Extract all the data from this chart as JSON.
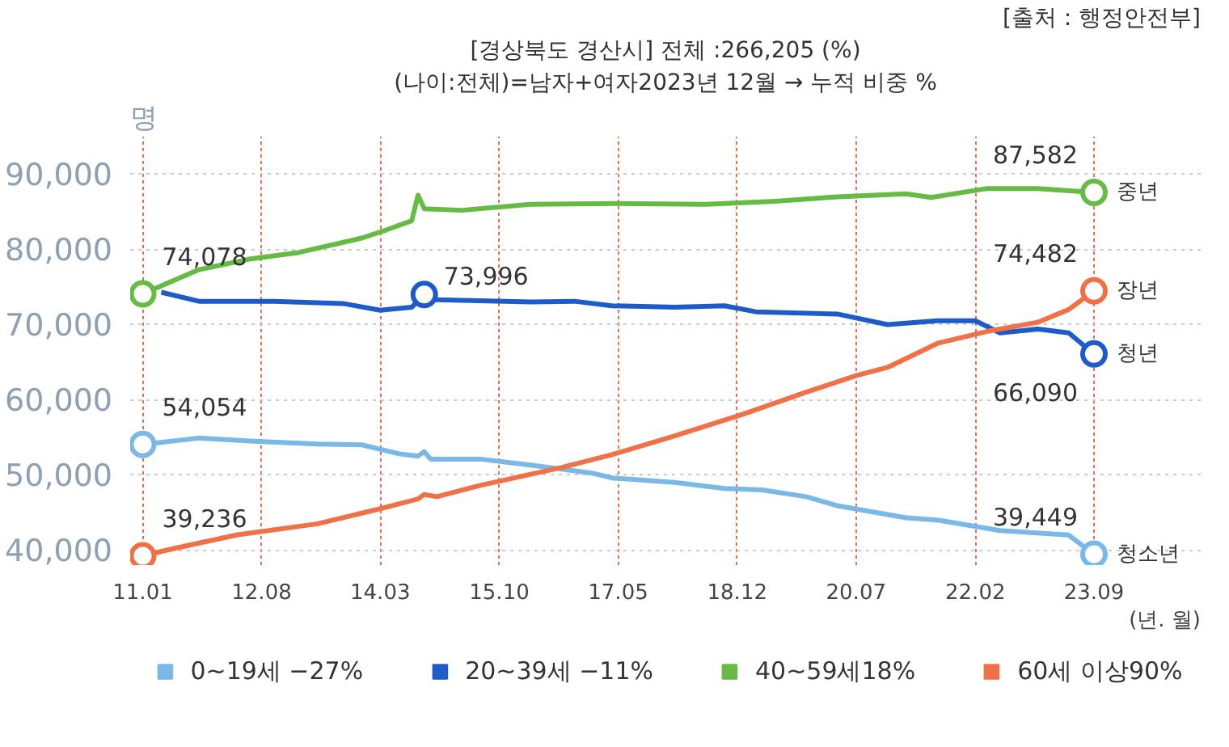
{
  "chart_data": {
    "type": "line",
    "title": "[경상북도 경산시] 전체 :266,205 (%)",
    "subtitle": "(나이:전체)=남자+여자2023년 12월 → 누적 비중 %",
    "ylabel": "명",
    "xlabel": "(년. 월)",
    "annotations": [
      "[출처 : 행정안전부]",
      {
        "text": "청소년",
        "x": "2023-09",
        "y": 39449
      },
      {
        "text": "청년",
        "x": "2023-09",
        "y": 66090
      },
      {
        "text": "중년",
        "x": "2023-09",
        "y": 87582
      },
      {
        "text": "장년",
        "x": "2023-09",
        "y": 74482
      }
    ],
    "xlim": [
      "2010-11",
      "2025-02"
    ],
    "ylim": [
      38000,
      95000
    ],
    "xticks": [
      {
        "value": "2011-01",
        "label": "11.01"
      },
      {
        "value": "2012-08",
        "label": "12.08"
      },
      {
        "value": "2014-03",
        "label": "14.03"
      },
      {
        "value": "2015-10",
        "label": "15.10"
      },
      {
        "value": "2017-05",
        "label": "17.05"
      },
      {
        "value": "2018-12",
        "label": "18.12"
      },
      {
        "value": "2020-07",
        "label": "20.07"
      },
      {
        "value": "2022-02",
        "label": "22.02"
      },
      {
        "value": "2023-09",
        "label": "23.09"
      }
    ],
    "yticks": [
      {
        "value": 40000,
        "label": "40,000"
      },
      {
        "value": 50000,
        "label": "50,000"
      },
      {
        "value": 60000,
        "label": "60,000"
      },
      {
        "value": 70000,
        "label": "70,000"
      },
      {
        "value": 80000,
        "label": "80,000"
      },
      {
        "value": 90000,
        "label": "90,000"
      }
    ],
    "grid": true,
    "legend": "bottom",
    "line_style": "solid",
    "series": [
      {
        "name": "0~19세 −27%",
        "color": "#7ab8e8",
        "x": [
          "2011-01",
          "2011-10",
          "2012-06",
          "2013-05",
          "2013-12",
          "2014-06",
          "2014-09",
          "2014-10",
          "2014-11",
          "2015-07",
          "2016-03",
          "2017-01",
          "2017-04",
          "2018-02",
          "2018-10",
          "2019-04",
          "2019-11",
          "2020-04",
          "2021-03",
          "2021-08",
          "2022-06",
          "2023-05",
          "2023-09"
        ],
        "values": [
          54054,
          54900,
          54500,
          54100,
          54000,
          52800,
          52500,
          53100,
          52100,
          52100,
          51300,
          50200,
          49600,
          49000,
          48200,
          48000,
          47100,
          45900,
          44300,
          44000,
          42600,
          42000,
          39449
        ],
        "value_labels": [
          "54,054",
          null,
          null,
          null,
          null,
          null,
          null,
          null,
          null,
          null,
          null,
          null,
          null,
          null,
          null,
          null,
          null,
          null,
          null,
          null,
          null,
          null,
          "39,449"
        ]
      },
      {
        "name": "20~39세 −11%",
        "color": "#1f5bc8",
        "x": [
          "2011-04",
          "2011-10",
          "2012-10",
          "2013-09",
          "2014-03",
          "2014-08",
          "2014-10",
          "2014-12",
          "2016-03",
          "2016-10",
          "2017-04",
          "2018-02",
          "2018-10",
          "2019-03",
          "2020-04",
          "2020-12",
          "2021-08",
          "2022-02",
          "2022-06",
          "2022-12",
          "2023-05",
          "2023-09"
        ],
        "values": [
          74300,
          73100,
          73100,
          72800,
          71900,
          72300,
          73996,
          73300,
          73000,
          73100,
          72500,
          72300,
          72500,
          71700,
          71400,
          70000,
          70500,
          70500,
          68900,
          69400,
          68900,
          66090
        ],
        "value_labels": [
          null,
          null,
          null,
          null,
          null,
          null,
          "73,996",
          null,
          null,
          null,
          null,
          null,
          null,
          null,
          null,
          null,
          null,
          null,
          null,
          null,
          null,
          "66,090"
        ]
      },
      {
        "name": "40~59세18%",
        "color": "#66bb44",
        "x": [
          "2011-01",
          "2011-10",
          "2012-06",
          "2013-02",
          "2013-12",
          "2014-04",
          "2014-08",
          "2014-09",
          "2014-10",
          "2015-04",
          "2016-03",
          "2017-04",
          "2018-07",
          "2019-06",
          "2020-04",
          "2021-03",
          "2021-07",
          "2022-04",
          "2022-12",
          "2023-09"
        ],
        "values": [
          74078,
          77300,
          78700,
          79600,
          81500,
          82600,
          83800,
          87200,
          85400,
          85200,
          86000,
          86100,
          86000,
          86400,
          87000,
          87400,
          86900,
          88100,
          88100,
          87582
        ],
        "value_labels": [
          "74,078",
          null,
          null,
          null,
          null,
          null,
          null,
          null,
          null,
          null,
          null,
          null,
          null,
          null,
          null,
          null,
          null,
          null,
          null,
          "87,582"
        ]
      },
      {
        "name": "60세 이상90%",
        "color": "#f07148",
        "x": [
          "2011-01",
          "2011-06",
          "2012-04",
          "2013-05",
          "2014-03",
          "2014-09",
          "2014-10",
          "2014-12",
          "2015-07",
          "2016-08",
          "2017-04",
          "2018-02",
          "2019-01",
          "2019-11",
          "2020-07",
          "2020-12",
          "2021-08",
          "2022-04",
          "2022-12",
          "2023-05",
          "2023-09"
        ],
        "values": [
          39236,
          40200,
          42000,
          43500,
          45500,
          46800,
          47400,
          47100,
          48600,
          51000,
          52700,
          55200,
          58100,
          61000,
          63200,
          64300,
          67500,
          69100,
          70300,
          72000,
          74482
        ],
        "value_labels": [
          "39,236",
          null,
          null,
          null,
          null,
          null,
          null,
          null,
          null,
          null,
          null,
          null,
          null,
          null,
          null,
          null,
          null,
          null,
          null,
          null,
          "74,482"
        ]
      }
    ]
  }
}
